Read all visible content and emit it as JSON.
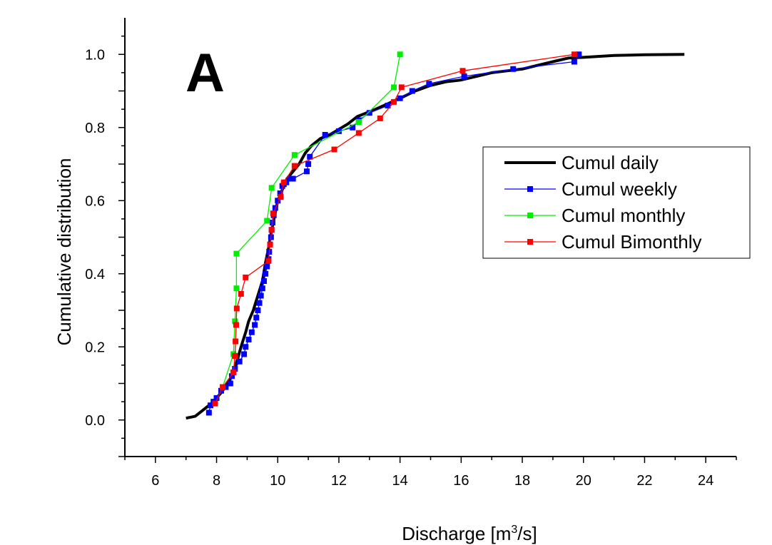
{
  "chart_data": {
    "type": "line",
    "panel_label": "A",
    "xlabel": "Discharge [m",
    "xlabel_sup": "3",
    "xlabel_tail": "/s]",
    "ylabel": "Cumulative distribution",
    "xlim": [
      5,
      25
    ],
    "ylim": [
      -0.1,
      1.1
    ],
    "xticks": [
      6,
      8,
      10,
      12,
      14,
      16,
      18,
      20,
      22,
      24
    ],
    "yticks": [
      0.0,
      0.2,
      0.4,
      0.6,
      0.8,
      1.0
    ],
    "ytick_labels": [
      "0.0",
      "0.2",
      "0.4",
      "0.6",
      "0.8",
      "1.0"
    ],
    "grid": false,
    "legend_position": "right",
    "series": [
      {
        "name": "Cumul daily",
        "color": "#000000",
        "marker": "none",
        "x": [
          7.0,
          7.3,
          7.6,
          7.9,
          8.2,
          8.5,
          8.7,
          8.8,
          8.95,
          9.05,
          9.2,
          9.35,
          9.5,
          9.6,
          9.7,
          9.8,
          9.9,
          10.0,
          10.15,
          10.3,
          10.5,
          10.7,
          10.9,
          11.1,
          11.4,
          11.7,
          12.0,
          12.3,
          12.6,
          12.9,
          13.2,
          13.6,
          14.0,
          14.5,
          15.0,
          15.5,
          16.0,
          16.5,
          17.0,
          17.5,
          18.0,
          18.5,
          19.0,
          19.5,
          20.0,
          21.0,
          22.0,
          23.3
        ],
        "y": [
          0.005,
          0.01,
          0.03,
          0.05,
          0.08,
          0.12,
          0.17,
          0.2,
          0.24,
          0.27,
          0.3,
          0.34,
          0.38,
          0.43,
          0.47,
          0.52,
          0.56,
          0.6,
          0.63,
          0.66,
          0.68,
          0.7,
          0.73,
          0.75,
          0.77,
          0.78,
          0.795,
          0.81,
          0.83,
          0.84,
          0.85,
          0.865,
          0.88,
          0.9,
          0.915,
          0.925,
          0.93,
          0.94,
          0.95,
          0.955,
          0.96,
          0.97,
          0.98,
          0.99,
          0.992,
          0.997,
          0.999,
          1.0
        ]
      },
      {
        "name": "Cumul weekly",
        "color": "#0000ff",
        "marker": "square",
        "x": [
          7.75,
          7.8,
          7.9,
          8.0,
          8.15,
          8.3,
          8.45,
          8.5,
          8.55,
          8.6,
          8.75,
          8.9,
          8.95,
          9.05,
          9.15,
          9.25,
          9.3,
          9.35,
          9.4,
          9.45,
          9.5,
          9.55,
          9.6,
          9.65,
          9.7,
          9.72,
          9.75,
          9.78,
          9.8,
          9.83,
          9.87,
          9.92,
          10.0,
          10.08,
          10.15,
          10.2,
          10.28,
          10.4,
          10.5,
          10.95,
          11.0,
          11.05,
          11.55,
          12.0,
          12.45,
          12.65,
          13.0,
          13.6,
          14.0,
          14.4,
          14.95,
          16.1,
          17.7,
          19.7,
          19.85
        ],
        "y": [
          0.02,
          0.04,
          0.05,
          0.06,
          0.08,
          0.09,
          0.1,
          0.12,
          0.13,
          0.14,
          0.16,
          0.18,
          0.2,
          0.22,
          0.24,
          0.26,
          0.28,
          0.3,
          0.32,
          0.34,
          0.36,
          0.38,
          0.4,
          0.42,
          0.44,
          0.46,
          0.48,
          0.5,
          0.52,
          0.54,
          0.56,
          0.58,
          0.6,
          0.62,
          0.64,
          0.645,
          0.65,
          0.66,
          0.66,
          0.68,
          0.7,
          0.72,
          0.78,
          0.79,
          0.8,
          0.82,
          0.84,
          0.86,
          0.88,
          0.9,
          0.92,
          0.94,
          0.96,
          0.98,
          1.0
        ]
      },
      {
        "name": "Cumul monthly",
        "color": "#00ee00",
        "marker": "square",
        "x": [
          8.2,
          8.55,
          8.6,
          8.65,
          8.65,
          9.65,
          9.8,
          10.55,
          12.65,
          13.8,
          14.0
        ],
        "y": [
          0.09,
          0.18,
          0.27,
          0.36,
          0.455,
          0.545,
          0.635,
          0.725,
          0.815,
          0.91,
          1.0
        ]
      },
      {
        "name": "Cumul Bimonthly",
        "color": "#ff0000",
        "marker": "square",
        "x": [
          7.95,
          8.2,
          8.55,
          8.6,
          8.62,
          8.64,
          8.66,
          8.8,
          8.95,
          9.7,
          9.75,
          9.8,
          9.85,
          10.1,
          10.2,
          10.55,
          11.85,
          12.65,
          13.35,
          13.8,
          14.05,
          16.05,
          19.7
        ],
        "y": [
          0.045,
          0.09,
          0.13,
          0.175,
          0.215,
          0.26,
          0.305,
          0.345,
          0.39,
          0.435,
          0.48,
          0.52,
          0.565,
          0.61,
          0.65,
          0.695,
          0.74,
          0.785,
          0.825,
          0.87,
          0.91,
          0.955,
          1.0
        ]
      }
    ]
  }
}
